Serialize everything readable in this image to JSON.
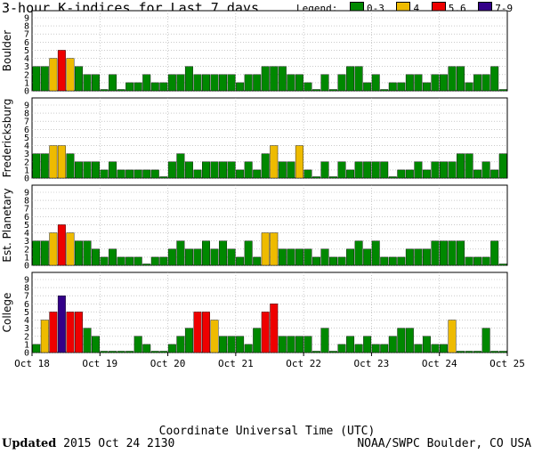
{
  "chart_data": {
    "type": "bar",
    "title": "3-hour K-indices for Last 7 days",
    "legend": {
      "title": "Legend:",
      "placement": "top-right",
      "items": [
        {
          "label": "0-3",
          "color": "#008800"
        },
        {
          "label": "4",
          "color": "#eebb00"
        },
        {
          "label": "5,6",
          "color": "#ee0000"
        },
        {
          "label": "7-9",
          "color": "#330088"
        }
      ]
    },
    "xlabel": "Coordinate Universal Time (UTC)",
    "x_ticks": [
      "Oct 18",
      "Oct 19",
      "Oct 20",
      "Oct 21",
      "Oct 22",
      "Oct 23",
      "Oct 24",
      "Oct 25"
    ],
    "ylim": [
      0,
      9
    ],
    "y_ticks": [
      "0",
      "1",
      "2",
      "3",
      "4",
      "5",
      "6",
      "7",
      "8",
      "9"
    ],
    "grid": true,
    "panels": [
      {
        "name": "Boulder",
        "values": [
          3,
          3,
          4,
          5,
          4,
          3,
          2,
          2,
          0,
          2,
          0,
          1,
          1,
          2,
          1,
          1,
          2,
          2,
          3,
          2,
          2,
          2,
          2,
          2,
          1,
          2,
          2,
          3,
          3,
          3,
          2,
          2,
          1,
          0,
          2,
          0,
          2,
          3,
          3,
          1,
          2,
          0,
          1,
          1,
          2,
          2,
          1,
          2,
          2,
          3,
          3,
          1,
          2,
          2,
          3,
          0
        ]
      },
      {
        "name": "Fredericksburg",
        "values": [
          3,
          3,
          4,
          4,
          3,
          2,
          2,
          2,
          1,
          2,
          1,
          1,
          1,
          1,
          1,
          0,
          2,
          3,
          2,
          1,
          2,
          2,
          2,
          2,
          1,
          2,
          1,
          3,
          4,
          2,
          2,
          4,
          1,
          0,
          2,
          0,
          2,
          1,
          2,
          2,
          2,
          2,
          0,
          1,
          1,
          2,
          1,
          2,
          2,
          2,
          3,
          3,
          1,
          2,
          1,
          3,
          0
        ]
      },
      {
        "name": "Est. Planetary",
        "values": [
          3,
          3,
          4,
          5,
          4,
          3,
          3,
          2,
          1,
          2,
          1,
          1,
          1,
          0,
          1,
          1,
          2,
          3,
          2,
          2,
          3,
          2,
          3,
          2,
          1,
          3,
          1,
          4,
          4,
          2,
          2,
          2,
          2,
          1,
          2,
          1,
          1,
          2,
          3,
          2,
          3,
          1,
          1,
          1,
          2,
          2,
          2,
          3,
          3,
          3,
          3,
          1,
          1,
          1,
          3,
          0
        ]
      },
      {
        "name": "College",
        "values": [
          1,
          4,
          5,
          7,
          5,
          5,
          3,
          2,
          0,
          0,
          0,
          0,
          2,
          1,
          0,
          0,
          1,
          2,
          3,
          5,
          5,
          4,
          2,
          2,
          2,
          1,
          3,
          5,
          6,
          2,
          2,
          2,
          2,
          0,
          3,
          0,
          1,
          2,
          1,
          2,
          1,
          1,
          2,
          3,
          3,
          1,
          2,
          1,
          1,
          4,
          0,
          0,
          0,
          3,
          0,
          0
        ]
      }
    ]
  },
  "footer": {
    "updated_label": "Updated",
    "updated_value": "2015 Oct 24 2130",
    "credit": "NOAA/SWPC Boulder, CO USA"
  }
}
